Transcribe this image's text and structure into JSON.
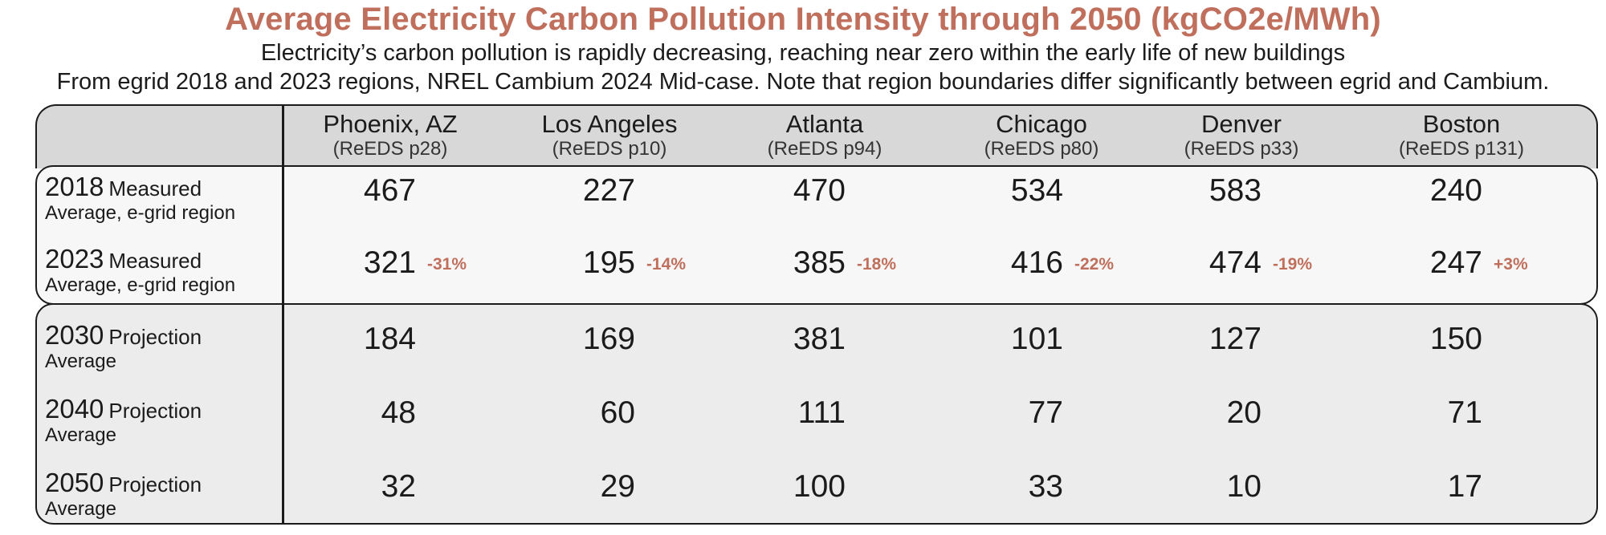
{
  "header": {
    "title": "Average Electricity Carbon Pollution Intensity through 2050 (kgCO2e/MWh)",
    "subtitle_1": "Electricity’s carbon pollution is rapidly decreasing, reaching near zero within the early life of new buildings",
    "subtitle_2": "From egrid 2018 and 2023 regions, NREL Cambium 2024 Mid-case. Note that region boundaries differ significantly between egrid and Cambium."
  },
  "columns": [
    {
      "city": "Phoenix, AZ",
      "region": "(ReEDS p28)"
    },
    {
      "city": "Los Angeles",
      "region": "(ReEDS p10)"
    },
    {
      "city": "Atlanta",
      "region": "(ReEDS p94)"
    },
    {
      "city": "Chicago",
      "region": "(ReEDS p80)"
    },
    {
      "city": "Denver",
      "region": "(ReEDS p33)"
    },
    {
      "city": "Boston",
      "region": "(ReEDS p131)"
    }
  ],
  "rows": [
    {
      "year": "2018",
      "kind": "Measured",
      "sub": "Average, e-grid region",
      "values": [
        "467",
        "227",
        "470",
        "534",
        "583",
        "240"
      ],
      "changes": []
    },
    {
      "year": "2023",
      "kind": "Measured",
      "sub": "Average, e-grid region",
      "values": [
        "321",
        "195",
        "385",
        "416",
        "474",
        "247"
      ],
      "changes": [
        "-31%",
        "-14%",
        "-18%",
        "-22%",
        "-19%",
        "+3%"
      ]
    },
    {
      "year": "2030",
      "kind": "Projection",
      "sub": "Average",
      "values": [
        "184",
        "169",
        "381",
        "101",
        "127",
        "150"
      ],
      "changes": []
    },
    {
      "year": "2040",
      "kind": "Projection",
      "sub": "Average",
      "values": [
        "48",
        "60",
        "111",
        "77",
        "20",
        "71"
      ],
      "changes": []
    },
    {
      "year": "2050",
      "kind": "Projection",
      "sub": "Average",
      "values": [
        "32",
        "29",
        "100",
        "33",
        "10",
        "17"
      ],
      "changes": []
    }
  ],
  "colors": {
    "accent": "#bf6f5c",
    "header_fill": "#d8d8d8",
    "measured_fill": "#f7f7f7",
    "projection_fill": "#ececec"
  }
}
